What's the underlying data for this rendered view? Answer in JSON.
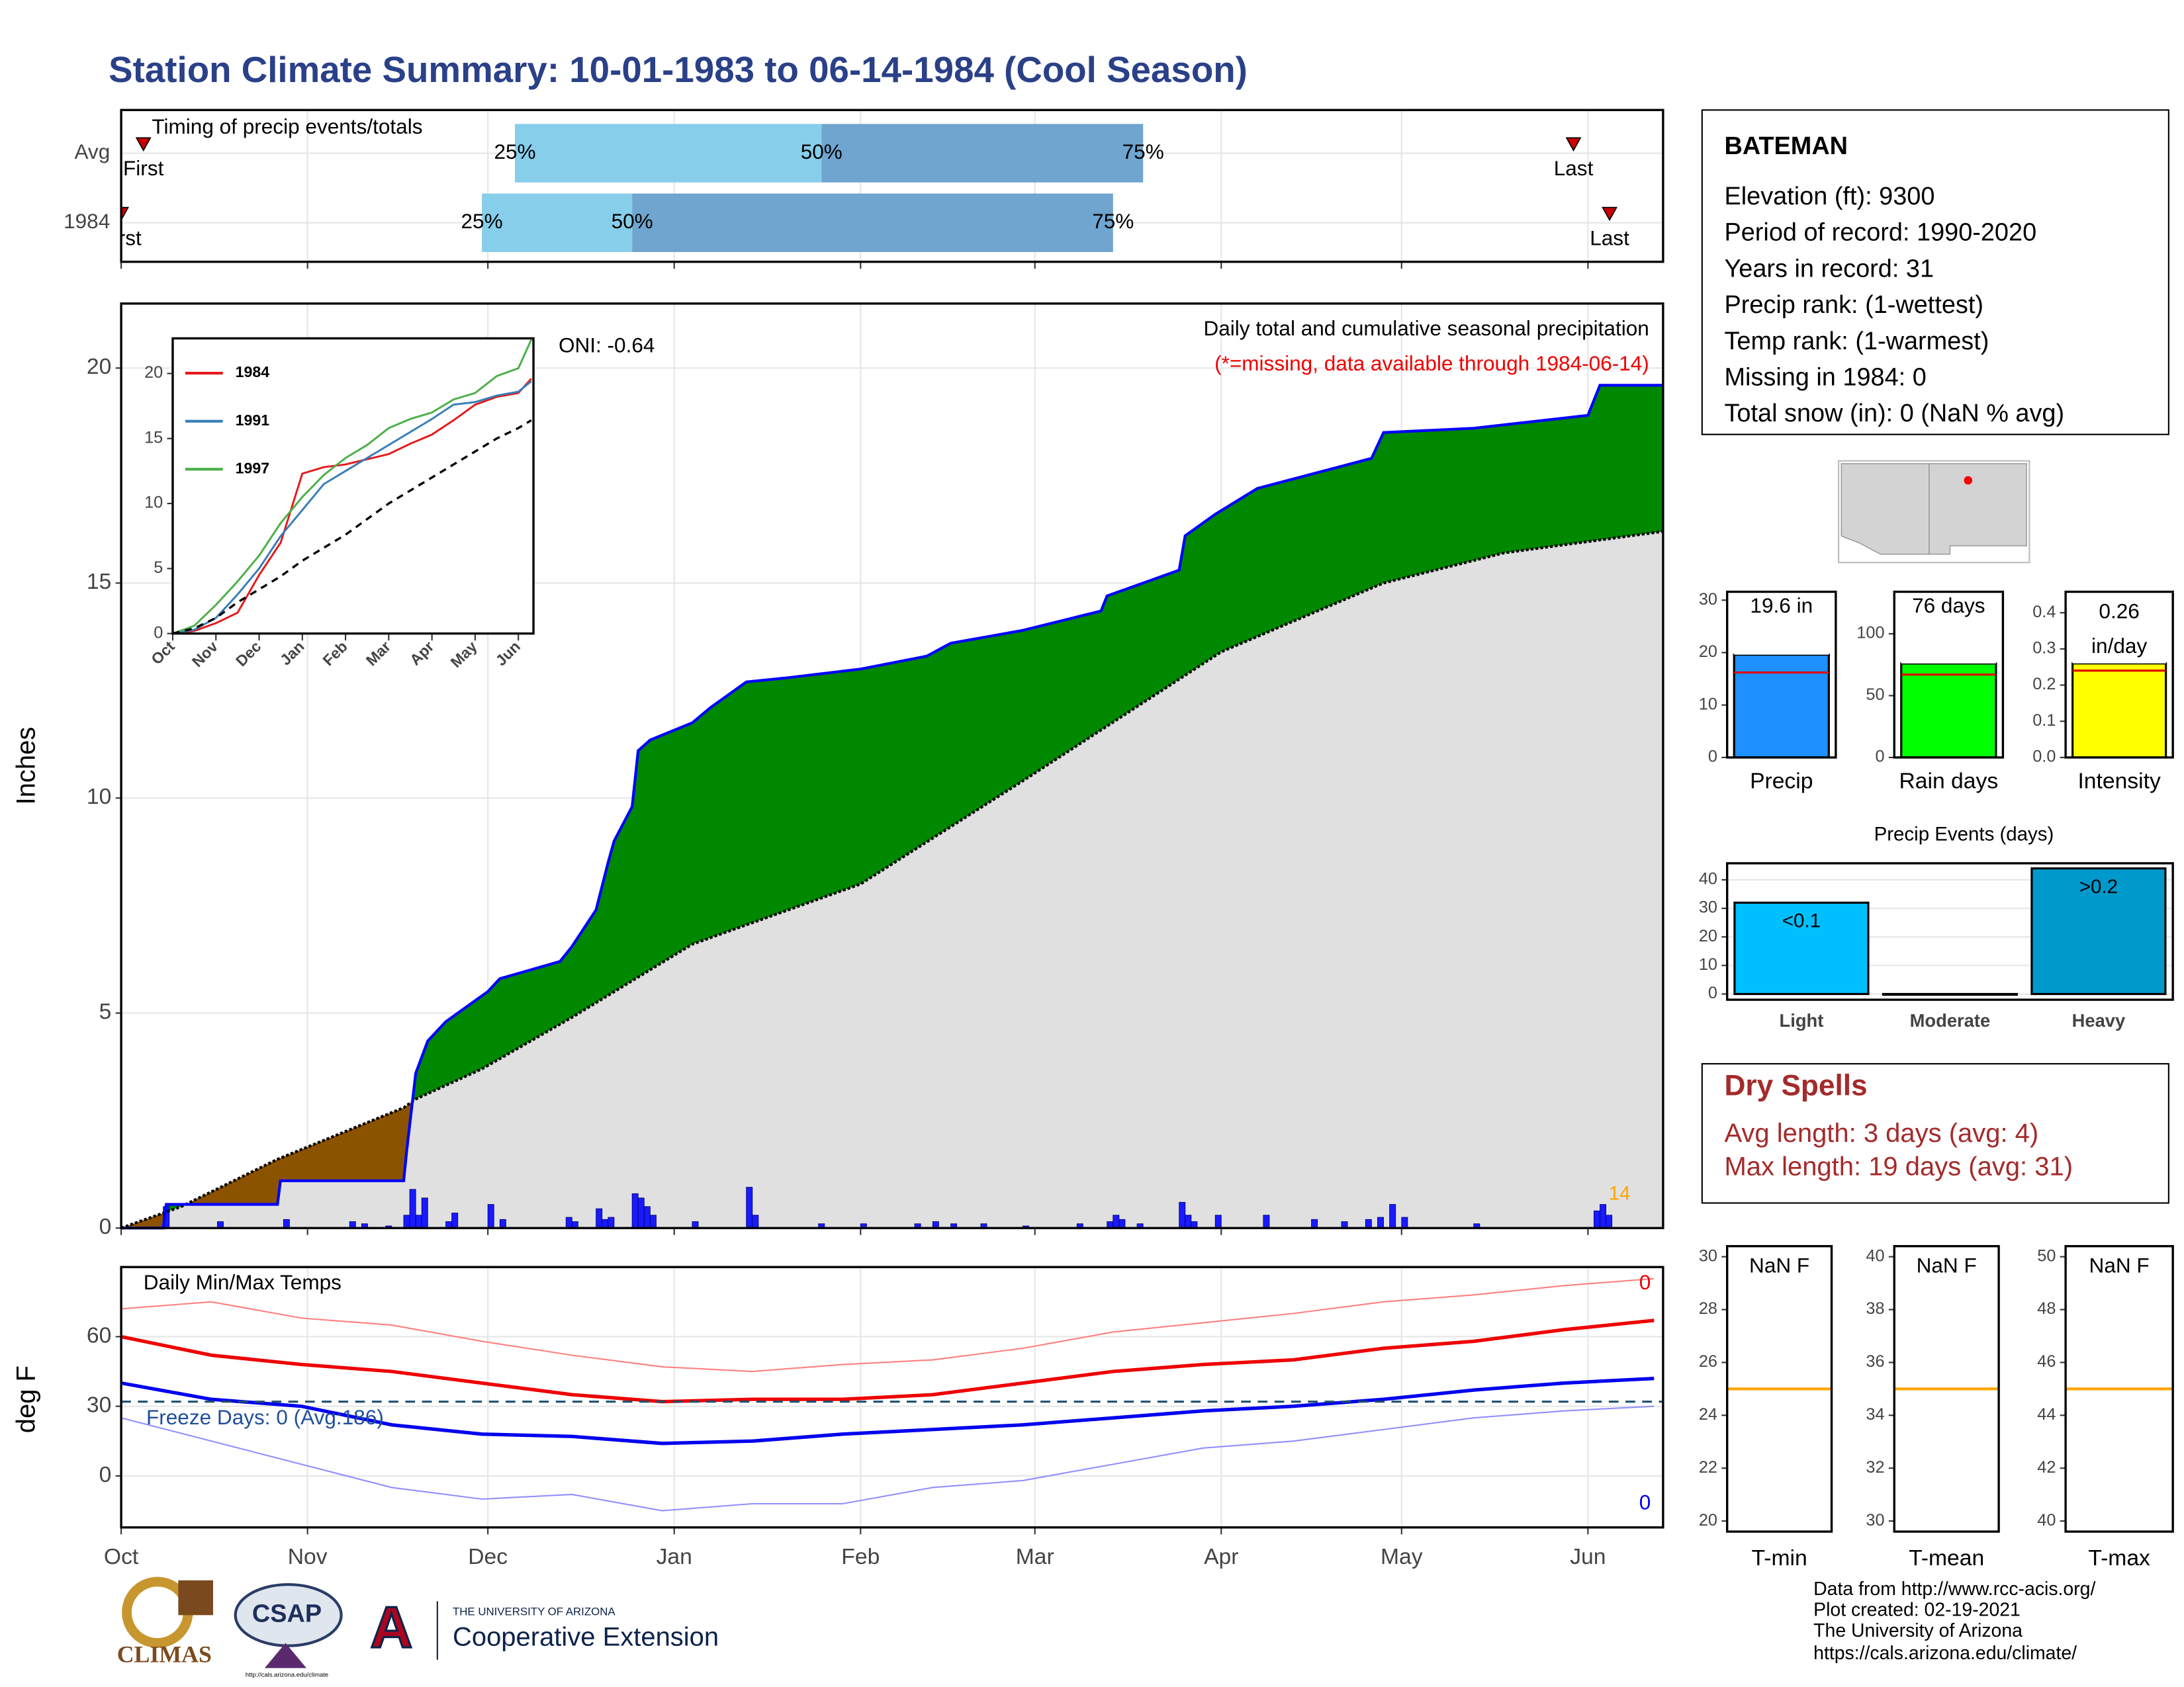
{
  "title": "Station Climate Summary: 10-01-1983 to 06-14-1984 (Cool Season)",
  "chart_data": [
    {
      "type": "timing",
      "title": "Timing of precip events/totals",
      "categories": [
        "Avg",
        "1984"
      ],
      "first": [
        3.7,
        0
      ],
      "q25": [
        65.5,
        60
      ],
      "q50": [
        116.5,
        85
      ],
      "q75": [
        170,
        165
      ],
      "last": [
        241.6,
        247.6
      ],
      "first_label": "First",
      "last_label": "Last",
      "q_labels": [
        "25%",
        "50%",
        "75%"
      ],
      "colors": [
        "#87ceeb",
        "#6fa5cf"
      ],
      "marker_color": "#cc0000",
      "xlim": [
        0,
        256.5
      ],
      "xticks": [
        0,
        31,
        61,
        92,
        123,
        152,
        183,
        213,
        244
      ],
      "grid": true
    },
    {
      "type": "cumulative",
      "ylabel": "Inches",
      "annotations": [
        "ONI: -0.64",
        "Daily total and cumulative seasonal precipitation",
        "(*=missing, data available through 1984-06-14)",
        "14"
      ],
      "cumulative": {
        "color": "#0000ff",
        "x": [
          0,
          7,
          7.5,
          26,
          26.5,
          47,
          47.5,
          49,
          51,
          54,
          61,
          63,
          73,
          75,
          79,
          81,
          82,
          85,
          86,
          88,
          95,
          98,
          104,
          111,
          123,
          134,
          138,
          150,
          163,
          164,
          170,
          176,
          177,
          182,
          189,
          208,
          210,
          225,
          244,
          246,
          256.5
        ],
        "values": [
          0,
          0,
          0.55,
          0.55,
          1.1,
          1.1,
          1.8,
          3.6,
          4.35,
          4.8,
          5.5,
          5.8,
          6.2,
          6.55,
          7.4,
          8.5,
          9.0,
          9.8,
          11.1,
          11.35,
          11.75,
          12.1,
          12.7,
          12.8,
          13.0,
          13.3,
          13.6,
          13.9,
          14.35,
          14.7,
          15.0,
          15.3,
          16.1,
          16.6,
          17.2,
          17.9,
          18.5,
          18.6,
          18.9,
          19.6,
          19.6
        ]
      },
      "normal": {
        "color": "#000000",
        "x": [
          0,
          10,
          26,
          40,
          47,
          49,
          60,
          75,
          95,
          123,
          150,
          183,
          210,
          230,
          256.5
        ],
        "values": [
          0,
          0.5,
          1.6,
          2.4,
          2.8,
          3.0,
          3.7,
          4.9,
          6.6,
          8.0,
          10.4,
          13.4,
          15.0,
          15.7,
          16.2
        ]
      },
      "daily": {
        "color": "#1a1aff",
        "x": [
          7,
          16,
          27,
          38,
          40,
          44,
          47,
          48,
          49,
          50,
          54,
          55,
          61,
          63,
          74,
          75,
          79,
          80,
          81,
          85,
          86,
          87,
          88,
          95,
          104,
          105,
          116,
          123,
          132,
          135,
          138,
          143,
          150,
          159,
          164,
          165,
          166,
          169,
          176,
          177,
          178,
          182,
          190,
          198,
          203,
          207,
          209,
          211,
          213,
          225,
          245,
          246,
          247
        ],
        "values": [
          0.5,
          0.15,
          0.2,
          0.15,
          0.1,
          0.05,
          0.3,
          0.9,
          0.3,
          0.7,
          0.15,
          0.35,
          0.55,
          0.2,
          0.25,
          0.15,
          0.45,
          0.2,
          0.25,
          0.8,
          0.7,
          0.5,
          0.3,
          0.15,
          0.95,
          0.3,
          0.1,
          0.1,
          0.1,
          0.15,
          0.1,
          0.1,
          0.05,
          0.1,
          0.15,
          0.3,
          0.2,
          0.1,
          0.6,
          0.3,
          0.15,
          0.3,
          0.3,
          0.2,
          0.15,
          0.2,
          0.25,
          0.55,
          0.25,
          0.1,
          0.4,
          0.55,
          0.3
        ]
      },
      "fill_above": "#008800",
      "fill_below": "#8b5200",
      "fill_base": "#e0e0e0",
      "xlim": [
        0,
        256.5
      ],
      "xticks": [
        0,
        31,
        61,
        92,
        123,
        152,
        183,
        213,
        244
      ],
      "ylim": [
        0,
        21.5
      ],
      "yticks": [
        0,
        5,
        10,
        15,
        20
      ],
      "grid": true
    },
    {
      "type": "line",
      "x": [
        0,
        0.5,
        1,
        1.5,
        2,
        2.5,
        3,
        3.5,
        4,
        4.5,
        5,
        5.5,
        6,
        6.5,
        7,
        7.5,
        8,
        8.3
      ],
      "series": [
        {
          "name": "1984",
          "color": "#e41a1c",
          "values": [
            0,
            0.2,
            0.8,
            1.6,
            4.5,
            7.0,
            12.3,
            12.8,
            13.0,
            13.4,
            13.8,
            14.6,
            15.3,
            16.4,
            17.6,
            18.2,
            18.5,
            19.6
          ]
        },
        {
          "name": "1991",
          "color": "#377eb8",
          "values": [
            0,
            0.3,
            1.2,
            3.0,
            5.0,
            7.5,
            9.5,
            11.5,
            12.5,
            13.5,
            14.5,
            15.5,
            16.5,
            17.6,
            17.8,
            18.3,
            18.6,
            19.4
          ]
        },
        {
          "name": "1997",
          "color": "#4daf4a",
          "values": [
            0,
            0.6,
            2.2,
            4.0,
            6.0,
            8.5,
            10.5,
            12.2,
            13.5,
            14.5,
            15.8,
            16.5,
            17.0,
            18.0,
            18.5,
            19.8,
            20.4,
            22.6
          ]
        },
        {
          "color": "#000000",
          "dashed": true,
          "values": [
            0,
            0.4,
            1.2,
            2.4,
            3.4,
            4.4,
            5.6,
            6.6,
            7.6,
            8.8,
            10,
            11,
            12,
            13,
            14,
            15,
            15.8,
            16.4
          ]
        }
      ],
      "xlim": [
        0,
        8.35
      ],
      "xticks": [
        {
          "value": 0,
          "label": "Oct"
        },
        {
          "value": 1,
          "label": "Nov"
        },
        {
          "value": 2,
          "label": "Dec"
        },
        {
          "value": 3,
          "label": "Jan"
        },
        {
          "value": 4,
          "label": "Feb"
        },
        {
          "value": 5,
          "label": "Mar"
        },
        {
          "value": 6,
          "label": "Apr"
        },
        {
          "value": 7,
          "label": "May"
        },
        {
          "value": 8,
          "label": "Jun"
        }
      ],
      "ylim": [
        0,
        22.7
      ],
      "yticks": [
        0,
        5,
        10,
        15,
        20
      ]
    },
    {
      "type": "temps",
      "title": "Daily Min/Max Temps",
      "ylabel": "deg F",
      "annotations": [
        "Freeze Days: 0 (Avg:186)",
        "0",
        "0"
      ],
      "x": [
        0,
        15,
        30,
        45,
        60,
        75,
        90,
        105,
        120,
        135,
        150,
        165,
        180,
        195,
        210,
        225,
        240,
        255
      ],
      "series": [
        {
          "color": "#ff8080",
          "width": 1,
          "values": [
            72,
            75,
            68,
            65,
            58,
            52,
            47,
            45,
            48,
            50,
            55,
            62,
            66,
            70,
            75,
            78,
            82,
            85
          ]
        },
        {
          "color": "#9090ff",
          "width": 1,
          "values": [
            25,
            15,
            5,
            -5,
            -10,
            -8,
            -15,
            -12,
            -12,
            -5,
            -2,
            5,
            12,
            15,
            20,
            25,
            28,
            30
          ]
        },
        {
          "color": "#ee0000",
          "width": 2.5,
          "values": [
            60,
            52,
            48,
            45,
            40,
            35,
            32,
            33,
            33,
            35,
            40,
            45,
            48,
            50,
            55,
            58,
            63,
            67
          ]
        },
        {
          "color": "#0000ee",
          "width": 2.5,
          "values": [
            40,
            33,
            30,
            22,
            18,
            17,
            14,
            15,
            18,
            20,
            22,
            25,
            28,
            30,
            33,
            37,
            40,
            42
          ]
        }
      ],
      "freeze": 32,
      "xlim": [
        0,
        256.5
      ],
      "xticks": [
        {
          "value": 0,
          "label": "Oct"
        },
        {
          "value": 31,
          "label": "Nov"
        },
        {
          "value": 61,
          "label": "Dec"
        },
        {
          "value": 92,
          "label": "Jan"
        },
        {
          "value": 123,
          "label": "Feb"
        },
        {
          "value": 152,
          "label": "Mar"
        },
        {
          "value": 183,
          "label": "Apr"
        },
        {
          "value": 213,
          "label": "May"
        },
        {
          "value": 244,
          "label": "Jun"
        }
      ],
      "ylim": [
        -22.2,
        90
      ],
      "yticks": [
        0,
        30,
        60
      ],
      "grid": true
    },
    {
      "type": "single_bar",
      "xlabel": "Precip",
      "value": 19.6,
      "value_label": [
        "19.6 in"
      ],
      "normal": 16.2,
      "color": "#1e90ff",
      "ylim": [
        0,
        31.6
      ],
      "yticks": [
        0,
        10,
        20,
        30
      ]
    },
    {
      "type": "single_bar",
      "xlabel": "Rain days",
      "value": 76,
      "value_label": [
        "76 days"
      ],
      "normal": 67,
      "color": "#00ff00",
      "ylim": [
        0,
        134
      ],
      "yticks": [
        0,
        50,
        100
      ]
    },
    {
      "type": "single_bar",
      "xlabel": "Intensity",
      "value": 0.26,
      "value_label": [
        "0.26",
        "in/day"
      ],
      "normal": 0.24,
      "color": "#ffff00",
      "ylim": [
        0,
        0.458
      ],
      "yticks": [
        {
          "value": 0,
          "label": "0.0"
        },
        0.1,
        0.2,
        0.3,
        0.4
      ]
    },
    {
      "type": "bar",
      "title": "Precip Events (days)",
      "categories": [
        "Light",
        "Moderate",
        "Heavy"
      ],
      "values": [
        32,
        0,
        44
      ],
      "bar_labels": [
        "<0.1",
        null,
        ">0.2"
      ],
      "colors": [
        "#00bfff",
        "#0a8fbf",
        "#0099cc"
      ],
      "ylim": [
        -2,
        45.8
      ],
      "yticks": [
        0,
        10,
        20,
        30,
        40
      ],
      "grid": true
    },
    {
      "type": "temp_box",
      "xlabel": "T-min",
      "value_label": "NaN F",
      "normal": 25,
      "color": "#ffa500",
      "ylim": [
        19.6,
        30.4
      ],
      "yticks": [
        20,
        22,
        24,
        26,
        28,
        30
      ]
    },
    {
      "type": "temp_box",
      "xlabel": "T-mean",
      "value_label": "NaN F",
      "normal": 35,
      "color": "#ffa500",
      "ylim": [
        29.6,
        40.4
      ],
      "yticks": [
        30,
        32,
        34,
        36,
        38,
        40
      ]
    },
    {
      "type": "temp_box",
      "xlabel": "T-max",
      "value_label": "NaN F",
      "normal": 45,
      "color": "#ffa500",
      "ylim": [
        39.6,
        50.4
      ],
      "yticks": [
        40,
        42,
        44,
        46,
        48,
        50
      ]
    }
  ],
  "station": {
    "name": "BATEMAN",
    "lines": [
      "Elevation (ft): 9300",
      "Period of record: 1990-2020",
      "Years in record: 31",
      "Precip rank:  (1-wettest)",
      "Temp rank:  (1-warmest)",
      "Missing in 1984: 0",
      "Total snow (in): 0 (NaN % avg)"
    ]
  },
  "dry_spells": {
    "title": "Dry Spells",
    "lines": [
      "Avg length: 3 days (avg: 4)",
      "Max length: 19 days (avg: 31)"
    ]
  },
  "credits": [
    "Data from http://www.rcc-acis.org/",
    "Plot created: 02-19-2021",
    "The University of Arizona",
    "https://cals.arizona.edu/climate/"
  ],
  "logos": {
    "climas": "CLIMAS",
    "csap": "CSAP",
    "csap_url": "http://cals.arizona.edu/climate",
    "ua": "THE UNIVERSITY OF ARIZONA",
    "extension": "Cooperative Extension"
  }
}
